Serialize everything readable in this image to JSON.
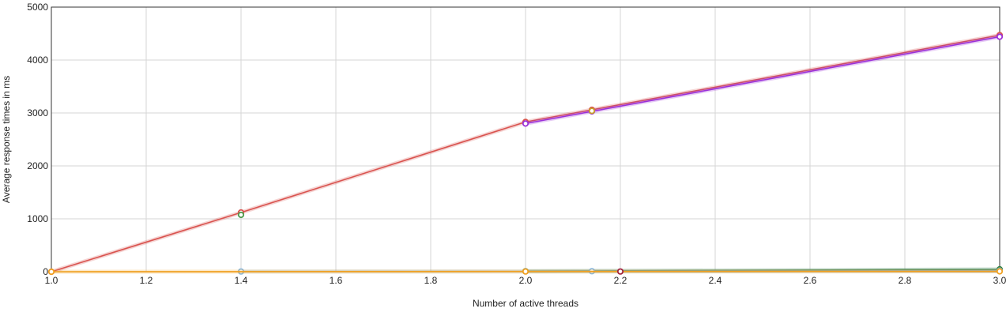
{
  "chart_data": {
    "type": "line",
    "xlabel": "Number of active threads",
    "ylabel": "Average response times in ms",
    "xlim": [
      1.0,
      3.0
    ],
    "ylim": [
      0,
      5000
    ],
    "x_ticks": [
      "1.0",
      "1.2",
      "1.4",
      "1.6",
      "1.8",
      "2.0",
      "2.2",
      "2.4",
      "2.6",
      "2.8",
      "3.0"
    ],
    "y_ticks": [
      "0",
      "1000",
      "2000",
      "3000",
      "4000",
      "5000"
    ],
    "grid": true,
    "series": [
      {
        "color": "#d9534f",
        "points": [
          [
            1.0,
            0
          ],
          [
            1.4,
            1120
          ],
          [
            2.0,
            2830
          ],
          [
            2.14,
            3060
          ],
          [
            3.0,
            4470
          ]
        ]
      },
      {
        "color": "#9b30d9",
        "points": [
          [
            2.0,
            2800
          ],
          [
            2.14,
            3030
          ],
          [
            3.0,
            4440
          ]
        ]
      },
      {
        "color": "#4a9a4a",
        "points": [
          [
            1.4,
            1075
          ]
        ]
      },
      {
        "color": "#c8a02a",
        "points": [
          [
            2.14,
            3040
          ]
        ]
      },
      {
        "color": "#2e7d3a",
        "points": [
          [
            2.0,
            10
          ],
          [
            3.0,
            45
          ]
        ]
      },
      {
        "color": "#87b5d9",
        "points": [
          [
            1.4,
            5
          ],
          [
            2.0,
            8
          ],
          [
            2.14,
            10
          ],
          [
            3.0,
            20
          ]
        ]
      },
      {
        "color": "#f0a020",
        "points": [
          [
            1.0,
            0
          ],
          [
            2.0,
            5
          ],
          [
            3.0,
            8
          ]
        ]
      },
      {
        "color": "#a0203a",
        "points": [
          [
            2.2,
            5
          ]
        ]
      }
    ]
  }
}
